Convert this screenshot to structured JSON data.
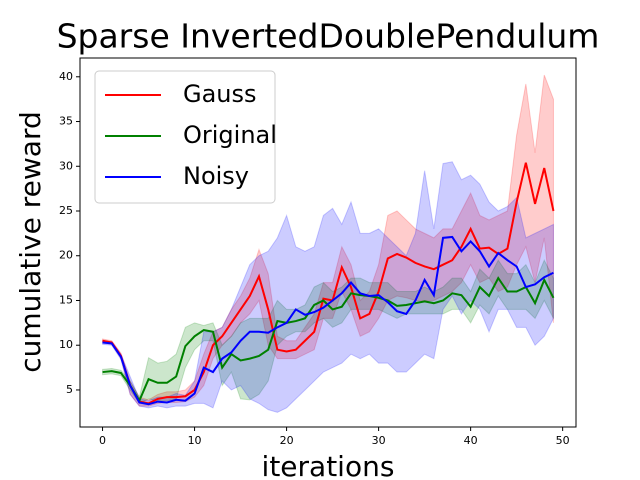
{
  "chart_data": {
    "type": "line",
    "title": "Sparse InvertedDoublePendulum",
    "x_label": "iterations",
    "y_label": "cumulative reward",
    "x": [
      0,
      1,
      2,
      3,
      4,
      5,
      6,
      7,
      8,
      9,
      10,
      11,
      12,
      13,
      14,
      15,
      16,
      17,
      18,
      19,
      20,
      21,
      22,
      23,
      24,
      25,
      26,
      27,
      28,
      29,
      30,
      31,
      32,
      33,
      34,
      35,
      36,
      37,
      38,
      39,
      40,
      41,
      42,
      43,
      44,
      45,
      46,
      47,
      48,
      49
    ],
    "xlim": [
      -2.45,
      51.45
    ],
    "xticks": [
      0,
      10,
      20,
      30,
      40,
      50
    ],
    "ylim": [
      0.86,
      42.1
    ],
    "yticks": [
      5,
      10,
      15,
      20,
      25,
      30,
      35,
      40
    ],
    "legend": "upper left",
    "series": [
      {
        "name": "Gauss",
        "color": "#ff0000",
        "values": [
          10.5,
          10.3,
          8.8,
          5.5,
          3.7,
          3.5,
          4,
          4.2,
          4.2,
          4.3,
          5,
          7,
          10,
          11,
          12.5,
          14,
          15.5,
          17.7,
          14,
          9.5,
          9.3,
          9.5,
          10.5,
          11.5,
          15.2,
          15,
          18.7,
          16.5,
          13,
          13.5,
          16,
          19.7,
          20.2,
          19.8,
          19.2,
          18.8,
          18.5,
          19,
          19.5,
          21,
          23,
          20.8,
          20.9,
          20.2,
          20.8,
          26,
          30.4,
          25.8,
          29.8,
          25
        ],
        "lower": [
          10.3,
          10.1,
          8.5,
          4.5,
          3.2,
          3.2,
          3.5,
          3.6,
          3.6,
          3.7,
          4.2,
          5.5,
          8.5,
          10,
          11,
          12.5,
          13.5,
          15,
          10,
          8.5,
          8.5,
          8.5,
          9,
          9.5,
          13,
          13,
          16,
          14,
          11,
          11.5,
          13,
          15,
          15.5,
          15.3,
          15,
          15,
          15,
          15.5,
          16,
          17,
          19,
          17,
          17.5,
          16,
          16.5,
          19,
          21,
          17,
          22,
          12.5
        ],
        "upper": [
          10.7,
          10.5,
          9.1,
          6,
          4.2,
          3.9,
          4.5,
          4.8,
          4.8,
          5,
          6,
          9,
          11.5,
          12,
          14,
          15.5,
          17.5,
          20.7,
          18,
          11,
          10.5,
          10.5,
          12,
          13.5,
          17,
          17,
          21,
          19,
          15,
          16,
          19,
          24.5,
          25,
          24,
          23,
          22.5,
          22,
          23,
          23,
          25,
          27,
          24.5,
          24,
          24.5,
          25,
          33.5,
          39.2,
          31.5,
          40.2,
          37.5
        ]
      },
      {
        "name": "Original",
        "color": "#008000",
        "values": [
          7,
          7.1,
          6.9,
          5.5,
          3.8,
          6.2,
          5.8,
          5.8,
          6.5,
          9.9,
          11,
          11.7,
          11.5,
          7.5,
          9,
          8.3,
          8.5,
          8.8,
          9.5,
          12.7,
          12.5,
          12.7,
          13,
          14.5,
          15,
          14,
          14.3,
          15.8,
          15.6,
          15.5,
          15.3,
          15,
          14.4,
          14.5,
          14.7,
          14.9,
          14.7,
          15,
          15.8,
          15.6,
          14.3,
          16.5,
          15.5,
          17.5,
          16,
          16,
          16.5,
          14.7,
          17.3,
          15.3
        ],
        "lower": [
          6.7,
          6.8,
          6.6,
          5,
          3.5,
          4,
          3.8,
          3.8,
          4,
          7.5,
          9.5,
          10.5,
          10.5,
          5.5,
          7,
          4,
          3.9,
          4.5,
          6,
          10,
          11,
          11.5,
          11.5,
          12.5,
          13,
          12,
          12.5,
          14,
          14,
          14,
          14,
          13.5,
          13,
          13.5,
          13.5,
          13.5,
          13.5,
          13.5,
          14,
          14,
          12.5,
          14.5,
          13.5,
          15.5,
          14,
          14,
          14,
          13,
          15,
          13
        ],
        "upper": [
          7.3,
          7.4,
          7.2,
          6,
          4.2,
          8.6,
          8,
          8.2,
          9,
          12,
          12.5,
          12.2,
          12.5,
          10,
          11,
          12.5,
          13,
          13,
          13,
          15,
          14,
          14,
          14.5,
          16.5,
          17,
          16,
          16.5,
          17.5,
          17.5,
          17,
          17,
          17,
          16,
          16,
          16,
          16.5,
          16,
          16.5,
          17.5,
          17.5,
          16,
          18.5,
          17.5,
          19.5,
          18,
          18,
          19,
          17,
          19.5,
          17.5
        ]
      },
      {
        "name": "Noisy",
        "color": "#0000ff",
        "values": [
          10.3,
          10.2,
          8.7,
          5.5,
          3.6,
          3.4,
          3.7,
          3.6,
          3.9,
          3.8,
          4.6,
          7.5,
          7,
          8.5,
          9.2,
          10.5,
          11.5,
          11.5,
          11.4,
          12,
          12.5,
          14,
          13.4,
          13.7,
          14.2,
          15,
          15.8,
          17,
          15.8,
          15.5,
          15.6,
          14.8,
          13.8,
          13.5,
          15,
          17.3,
          15.6,
          22,
          22.1,
          20.5,
          21.6,
          20.5,
          18.8,
          20.3,
          19.5,
          18.8,
          16.5,
          16.8,
          17.6,
          18.1
        ],
        "lower": [
          10.1,
          10,
          8.4,
          4.5,
          3.2,
          3,
          3.2,
          3,
          3.2,
          3.2,
          3.5,
          3.5,
          3,
          6,
          5,
          5.5,
          4,
          3.5,
          2.8,
          2.5,
          3,
          4,
          5,
          6,
          7,
          7.5,
          8,
          9,
          8.5,
          9,
          8,
          8,
          7,
          7,
          8,
          9,
          8.5,
          14,
          15.5,
          13.5,
          15,
          14,
          11.5,
          14,
          14,
          12,
          12,
          10,
          11,
          13
        ],
        "upper": [
          10.5,
          10.4,
          9,
          6.5,
          4,
          3.8,
          4.2,
          4.2,
          4.6,
          4.4,
          6,
          11.5,
          11.5,
          12,
          14,
          16.5,
          19,
          20,
          20.5,
          22,
          24.5,
          21,
          20.5,
          21,
          24.5,
          25.3,
          23.5,
          26,
          22.5,
          22.5,
          23,
          22,
          21,
          20,
          22.5,
          29.5,
          23,
          30.3,
          30.5,
          28.5,
          29,
          28,
          26,
          25,
          25.5,
          26.5,
          22,
          22.5,
          23,
          23.5
        ]
      }
    ]
  }
}
